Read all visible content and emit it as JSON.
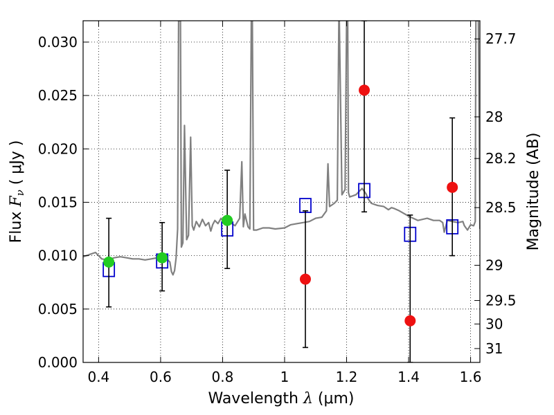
{
  "chart_data": {
    "type": "scatter",
    "xlabel": {
      "pre": "Wavelength  ",
      "sym": "λ",
      "post": " (μm)"
    },
    "ylabel": {
      "pre": "Flux  ",
      "sym": "F",
      "sub": "ν",
      "post": "  ( μJy )"
    },
    "ylabel_right": "Magnitude (AB)",
    "xlim": [
      0.35,
      1.63
    ],
    "ylim": [
      0.0,
      0.032
    ],
    "grid": true,
    "x_ticks": [
      0.4,
      0.6,
      0.8,
      1.0,
      1.2,
      1.4,
      1.6
    ],
    "x_tick_labels": [
      "0.4",
      "0.6",
      "0.8",
      "1",
      "1.2",
      "1.4",
      "1.6"
    ],
    "y_ticks": [
      0.0,
      0.005,
      0.01,
      0.015,
      0.02,
      0.025,
      0.03
    ],
    "y_tick_labels": [
      "0.000",
      "0.005",
      "0.010",
      "0.015",
      "0.020",
      "0.025",
      "0.030"
    ],
    "right_ticks": [
      {
        "flux": 0.0303,
        "label": "27.7"
      },
      {
        "flux": 0.023,
        "label": "28"
      },
      {
        "flux": 0.0191,
        "label": "28.2"
      },
      {
        "flux": 0.0145,
        "label": "28.5"
      },
      {
        "flux": 0.0091,
        "label": "29"
      },
      {
        "flux": 0.0058,
        "label": "29.5"
      },
      {
        "flux": 0.0036,
        "label": "30"
      },
      {
        "flux": 0.0013,
        "label": "31"
      }
    ],
    "colors": {
      "spectrum": "#808080",
      "detection": "#22cc22",
      "nondetection": "#ee1111",
      "model": "#0000cc",
      "errorbar": "#000000"
    },
    "series": [
      {
        "kind": "spectrum",
        "x": [
          0.35,
          0.37,
          0.39,
          0.41,
          0.43,
          0.45,
          0.47,
          0.49,
          0.51,
          0.53,
          0.55,
          0.57,
          0.59,
          0.61,
          0.62,
          0.63,
          0.635,
          0.64,
          0.645,
          0.65,
          0.655,
          0.658,
          0.661,
          0.664,
          0.667,
          0.672,
          0.677,
          0.684,
          0.69,
          0.697,
          0.702,
          0.707,
          0.715,
          0.725,
          0.735,
          0.745,
          0.755,
          0.762,
          0.768,
          0.775,
          0.785,
          0.795,
          0.805,
          0.82,
          0.84,
          0.855,
          0.862,
          0.867,
          0.872,
          0.877,
          0.882,
          0.888,
          0.8925,
          0.896,
          0.9,
          0.91,
          0.93,
          0.95,
          0.97,
          1.0,
          1.02,
          1.04,
          1.06,
          1.08,
          1.1,
          1.12,
          1.135,
          1.14,
          1.145,
          1.16,
          1.17,
          1.175,
          1.1765,
          1.185,
          1.195,
          1.2,
          1.2035,
          1.206,
          1.21,
          1.23,
          1.25,
          1.2625,
          1.27,
          1.28,
          1.3,
          1.32,
          1.335,
          1.345,
          1.355,
          1.37,
          1.4,
          1.43,
          1.46,
          1.48,
          1.5,
          1.51,
          1.515,
          1.525,
          1.54,
          1.56,
          1.575,
          1.58,
          1.59,
          1.6,
          1.61,
          1.615,
          1.617,
          1.625,
          1.63
        ],
        "y": [
          0.0099,
          0.0101,
          0.0103,
          0.0097,
          0.0096,
          0.0098,
          0.0099,
          0.0098,
          0.0097,
          0.0097,
          0.0096,
          0.0097,
          0.0098,
          0.0097,
          0.0097,
          0.0094,
          0.0085,
          0.0082,
          0.0086,
          0.0098,
          0.0125,
          0.032,
          0.032,
          0.032,
          0.0108,
          0.0112,
          0.0222,
          0.0115,
          0.0119,
          0.0211,
          0.0128,
          0.0124,
          0.0132,
          0.0127,
          0.0134,
          0.0128,
          0.0131,
          0.0123,
          0.0129,
          0.0133,
          0.013,
          0.0135,
          0.013,
          0.0132,
          0.0128,
          0.0135,
          0.0188,
          0.0127,
          0.0139,
          0.0133,
          0.0127,
          0.0125,
          0.032,
          0.032,
          0.0124,
          0.0124,
          0.0126,
          0.0126,
          0.0125,
          0.0126,
          0.0129,
          0.013,
          0.0131,
          0.0132,
          0.0135,
          0.0136,
          0.0142,
          0.0186,
          0.0146,
          0.0149,
          0.0152,
          0.032,
          0.032,
          0.0157,
          0.0162,
          0.032,
          0.032,
          0.0159,
          0.0155,
          0.0157,
          0.0163,
          0.0158,
          0.0153,
          0.0149,
          0.0147,
          0.0146,
          0.0143,
          0.0145,
          0.0144,
          0.0142,
          0.0137,
          0.0133,
          0.0135,
          0.0133,
          0.0133,
          0.0131,
          0.0122,
          0.0133,
          0.0132,
          0.0131,
          0.0132,
          0.0128,
          0.0124,
          0.0129,
          0.0128,
          0.0132,
          0.032,
          0.032,
          0.0125
        ]
      },
      {
        "kind": "detection",
        "name": "",
        "x": [
          0.433,
          0.605,
          0.815
        ],
        "y": [
          0.0094,
          0.0098,
          0.0133
        ],
        "err_low": [
          0.0042,
          0.0031,
          0.0045
        ],
        "err_high": [
          0.0041,
          0.0033,
          0.0047
        ]
      },
      {
        "kind": "nondetection",
        "name": "",
        "x": [
          1.067,
          1.257,
          1.405,
          1.541
        ],
        "y": [
          0.0078,
          0.0255,
          0.0039,
          0.0164
        ],
        "err_low": [
          0.0064,
          0.0114,
          0.0039,
          0.0064
        ],
        "err_high": [
          0.0064,
          0.0065,
          0.0099,
          0.0065
        ]
      },
      {
        "kind": "model",
        "name": "",
        "x": [
          0.433,
          0.605,
          0.815,
          1.067,
          1.257,
          1.405,
          1.541
        ],
        "y": [
          0.0087,
          0.0095,
          0.0125,
          0.0147,
          0.0161,
          0.012,
          0.0127
        ]
      }
    ]
  }
}
